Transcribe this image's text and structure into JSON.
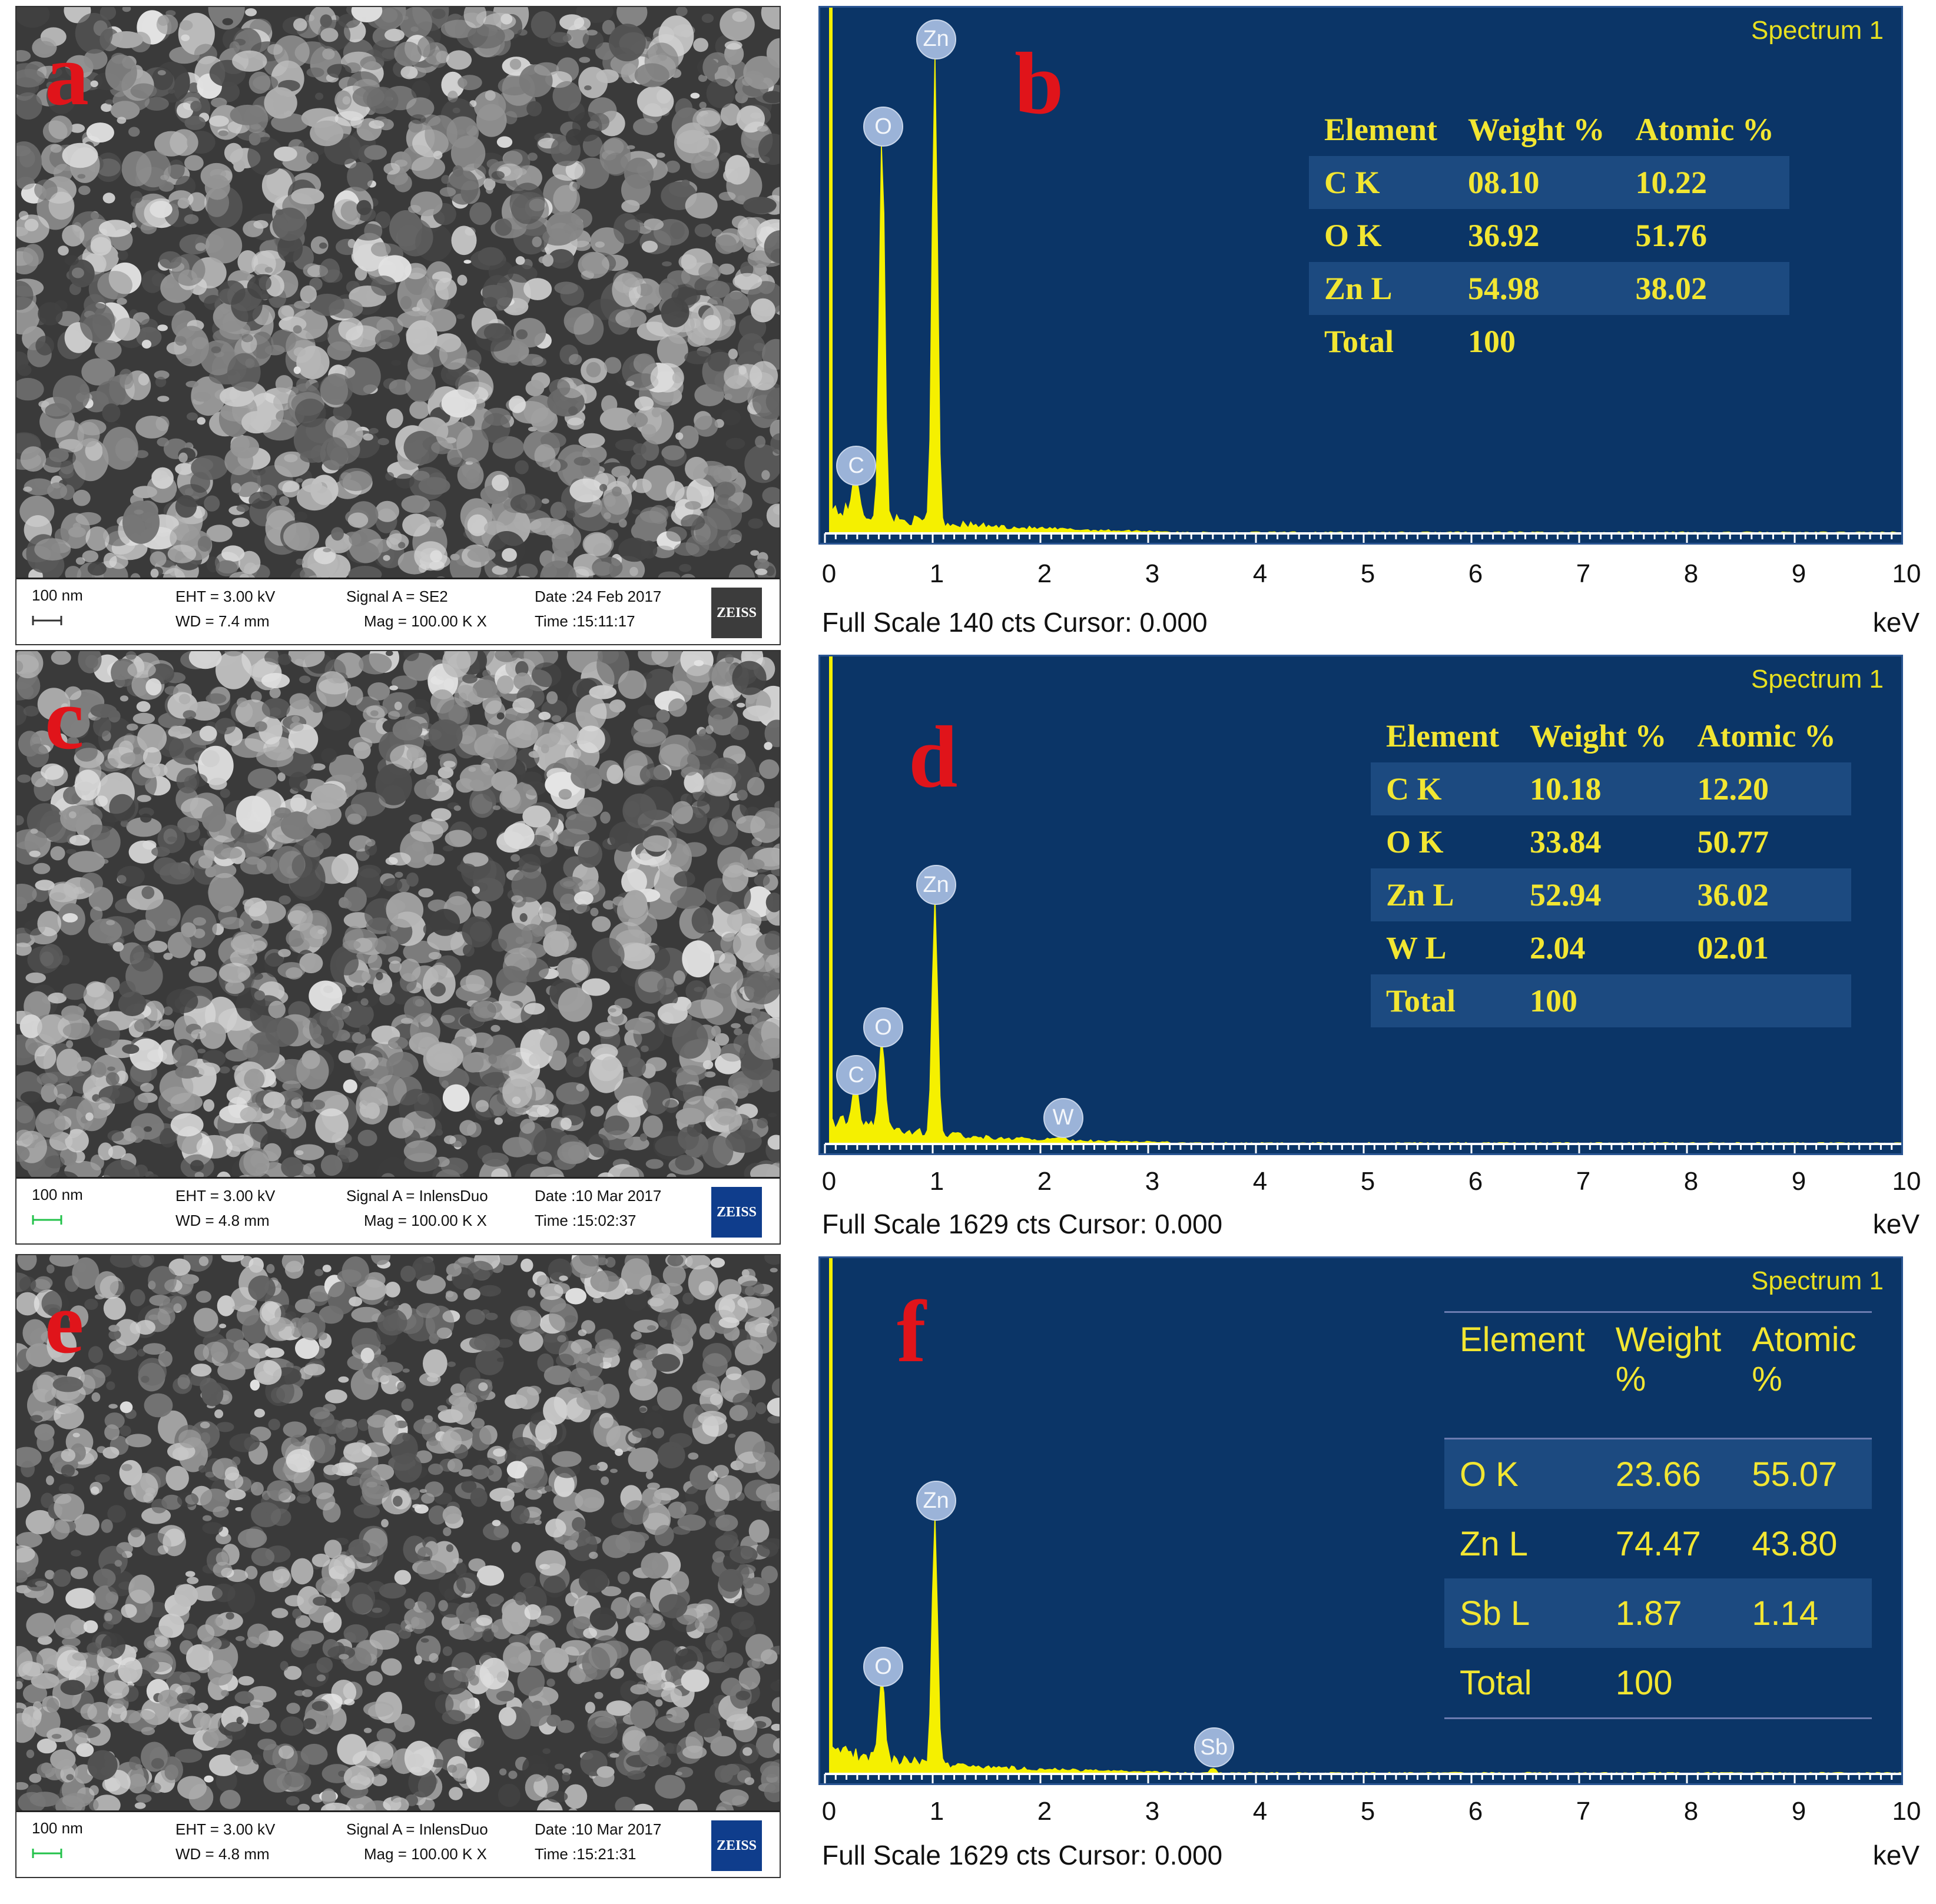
{
  "sem_panels": [
    {
      "letter": "a",
      "scale": "100 nm",
      "eht": "EHT =  3.00 kV",
      "wd": "WD =  7.4 mm",
      "signal": "Signal A = SE2",
      "mag": "Mag =  100.00 K X",
      "date": "Date :24 Feb 2017",
      "time": "Time :15:11:17",
      "logo": "ZEISS"
    },
    {
      "letter": "c",
      "scale": "100 nm",
      "eht": "EHT =  3.00 kV",
      "wd": "WD =  4.8 mm",
      "signal": "Signal A = InlensDuo",
      "mag": "Mag =  100.00 K X",
      "date": "Date :10 Mar 2017",
      "time": "Time :15:02:37",
      "logo": "ZEISS"
    },
    {
      "letter": "e",
      "scale": "100 nm",
      "eht": "EHT =  3.00 kV",
      "wd": "WD =  4.8 mm",
      "signal": "Signal A = InlensDuo",
      "mag": "Mag =  100.00 K X",
      "date": "Date :10 Mar 2017",
      "time": "Time :15:21:31",
      "logo": "ZEISS"
    }
  ],
  "chart_data": [
    {
      "type": "line",
      "panel": "b",
      "title": "Spectrum 1",
      "x_ticks": [
        "0",
        "1",
        "2",
        "3",
        "4",
        "5",
        "6",
        "7",
        "8",
        "9",
        "10"
      ],
      "x_unit": "keV",
      "xlim": [
        0,
        10
      ],
      "footer": "Full Scale 140 cts Cursor: 0.000",
      "peaks": [
        {
          "label": "C",
          "x": 0.28,
          "height": 0.09
        },
        {
          "label": "O",
          "x": 0.53,
          "height": 0.75
        },
        {
          "label": "Zn",
          "x": 1.02,
          "height": 0.92
        }
      ],
      "table": {
        "headers": [
          "Element",
          "Weight %",
          "Atomic %"
        ],
        "rows": [
          [
            "C K",
            "08.10",
            "10.22"
          ],
          [
            "O K",
            "36.92",
            "51.76"
          ],
          [
            "Zn L",
            "54.98",
            "38.02"
          ],
          [
            "Total",
            "100",
            ""
          ]
        ]
      }
    },
    {
      "type": "line",
      "panel": "d",
      "title": "Spectrum 1",
      "x_ticks": [
        "0",
        "1",
        "2",
        "3",
        "4",
        "5",
        "6",
        "7",
        "8",
        "9",
        "10"
      ],
      "x_unit": "keV",
      "xlim": [
        0,
        10
      ],
      "footer": "Full Scale 1629 cts Cursor: 0.000",
      "peaks": [
        {
          "label": "C",
          "x": 0.28,
          "height": 0.1
        },
        {
          "label": "O",
          "x": 0.53,
          "height": 0.2
        },
        {
          "label": "Zn",
          "x": 1.02,
          "height": 0.5
        },
        {
          "label": "W",
          "x": 2.2,
          "height": 0.01
        }
      ],
      "table": {
        "headers": [
          "Element",
          "Weight %",
          "Atomic %"
        ],
        "rows": [
          [
            "C K",
            "10.18",
            "12.20"
          ],
          [
            "O K",
            "33.84",
            "50.77"
          ],
          [
            "Zn L",
            "52.94",
            "36.02"
          ],
          [
            "W L",
            "2.04",
            "02.01"
          ],
          [
            "Total",
            "100",
            ""
          ]
        ]
      }
    },
    {
      "type": "line",
      "panel": "f",
      "title": "Spectrum 1",
      "x_ticks": [
        "0",
        "1",
        "2",
        "3",
        "4",
        "5",
        "6",
        "7",
        "8",
        "9",
        "10"
      ],
      "x_unit": "keV",
      "xlim": [
        0,
        10
      ],
      "footer": "Full Scale 1629 cts Cursor: 0.000",
      "peaks": [
        {
          "label": "O",
          "x": 0.53,
          "height": 0.17
        },
        {
          "label": "Zn",
          "x": 1.02,
          "height": 0.5
        },
        {
          "label": "Sb",
          "x": 3.6,
          "height": 0.01
        }
      ],
      "table": {
        "headers": [
          "Element",
          "Weight %",
          "Atomic %"
        ],
        "rows": [
          [
            "O K",
            "23.66",
            "55.07"
          ],
          [
            "Zn L",
            "74.47",
            "43.80"
          ],
          [
            "Sb L",
            "1.87",
            "1.14"
          ],
          [
            "Total",
            "100",
            ""
          ]
        ]
      }
    }
  ],
  "colors": {
    "eds_background": "#0b3567",
    "spectrum_fill": "#f5f000",
    "table_text": "#f2e632",
    "panel_letter": "#e0141a",
    "scale_bar_a": "#333333",
    "scale_bar_ce": "#22c24a"
  }
}
